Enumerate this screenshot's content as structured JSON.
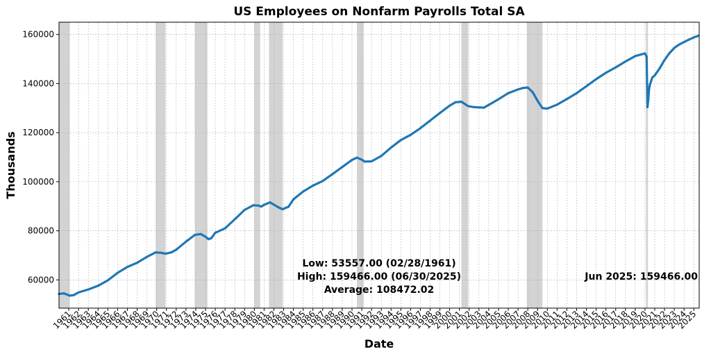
{
  "chart_data": {
    "type": "line",
    "title": "US Employees on Nonfarm Payrolls Total SA",
    "xlabel": "Date",
    "ylabel": "Thousands",
    "xlim": [
      1960.0,
      2025.55
    ],
    "ylim": [
      48500,
      165000
    ],
    "y_ticks": [
      60000,
      80000,
      100000,
      120000,
      140000,
      160000
    ],
    "x_ticks": [
      "1961",
      "1962",
      "1963",
      "1964",
      "1965",
      "1966",
      "1967",
      "1968",
      "1969",
      "1970",
      "1971",
      "1972",
      "1973",
      "1974",
      "1975",
      "1976",
      "1977",
      "1978",
      "1979",
      "1980",
      "1981",
      "1982",
      "1983",
      "1984",
      "1985",
      "1986",
      "1987",
      "1988",
      "1989",
      "1990",
      "1991",
      "1992",
      "1993",
      "1994",
      "1995",
      "1996",
      "1997",
      "1998",
      "1999",
      "2000",
      "2001",
      "2002",
      "2003",
      "2004",
      "2005",
      "2006",
      "2007",
      "2008",
      "2009",
      "2010",
      "2011",
      "2012",
      "2013",
      "2014",
      "2015",
      "2016",
      "2017",
      "2018",
      "2019",
      "2020",
      "2021",
      "2022",
      "2023",
      "2024",
      "2025"
    ],
    "grid": true,
    "series_color": "#1f77b4",
    "recession_color": "#c8c8c8",
    "recessions": [
      [
        1960.0,
        1961.1
      ],
      [
        1969.9,
        1970.9
      ],
      [
        1973.9,
        1975.2
      ],
      [
        1980.0,
        1980.6
      ],
      [
        1981.5,
        1982.9
      ],
      [
        1990.5,
        1991.2
      ],
      [
        2001.2,
        2001.9
      ],
      [
        2007.9,
        2009.5
      ],
      [
        2020.1,
        2020.3
      ]
    ],
    "series": [
      {
        "x": [
          1960.0,
          1960.5,
          1961.1,
          1961.5,
          1962.0,
          1963.0,
          1964.0,
          1965.0,
          1966.0,
          1967.0,
          1968.0,
          1969.0,
          1969.9,
          1970.5,
          1970.9,
          1971.5,
          1972.0,
          1973.0,
          1973.9,
          1974.5,
          1975.0,
          1975.3,
          1975.6,
          1976.0,
          1977.0,
          1978.0,
          1979.0,
          1979.9,
          1980.4,
          1980.7,
          1981.0,
          1981.6,
          1982.5,
          1982.9,
          1983.5,
          1984.0,
          1985.0,
          1986.0,
          1987.0,
          1988.0,
          1989.0,
          1990.0,
          1990.5,
          1991.0,
          1991.3,
          1992.0,
          1993.0,
          1994.0,
          1995.0,
          1996.0,
          1997.0,
          1998.0,
          1999.0,
          2000.0,
          2000.6,
          2001.2,
          2001.9,
          2002.5,
          2003.5,
          2004.0,
          2005.0,
          2006.0,
          2007.0,
          2007.5,
          2008.0,
          2008.5,
          2009.0,
          2009.5,
          2010.0,
          2011.0,
          2012.0,
          2013.0,
          2014.0,
          2015.0,
          2016.0,
          2017.0,
          2018.0,
          2019.0,
          2020.0,
          2020.17,
          2020.25,
          2020.33,
          2020.42,
          2020.5,
          2020.75,
          2021.0,
          2021.5,
          2022.0,
          2022.5,
          2023.0,
          2023.5,
          2024.0,
          2024.5,
          2025.0,
          2025.45
        ],
        "values": [
          54300,
          54500,
          53600,
          53800,
          54900,
          56100,
          57600,
          59800,
          62900,
          65300,
          67000,
          69400,
          71200,
          71000,
          70700,
          71200,
          72300,
          75600,
          78300,
          78700,
          77600,
          76600,
          77000,
          79200,
          81000,
          84700,
          88500,
          90400,
          90300,
          89900,
          90600,
          91600,
          89500,
          88800,
          89800,
          92800,
          96000,
          98400,
          100300,
          103100,
          106000,
          108900,
          109800,
          109000,
          108200,
          108300,
          110500,
          113900,
          117000,
          119100,
          121800,
          124900,
          128000,
          131000,
          132400,
          132600,
          130800,
          130400,
          130200,
          131300,
          133600,
          136100,
          137600,
          138200,
          138400,
          136500,
          133000,
          130000,
          129800,
          131400,
          133700,
          136100,
          138900,
          141800,
          144400,
          146600,
          149000,
          151200,
          152300,
          151000,
          130400,
          133200,
          137800,
          139500,
          142500,
          143300,
          146200,
          149600,
          152400,
          154500,
          155900,
          156900,
          157900,
          158800,
          159466
        ]
      }
    ],
    "stats": {
      "low": "Low: 53557.00 (02/28/1961)",
      "high": "High: 159466.00 (06/30/2025)",
      "average": "Average: 108472.02",
      "latest": "Jun 2025: 159466.00"
    }
  }
}
